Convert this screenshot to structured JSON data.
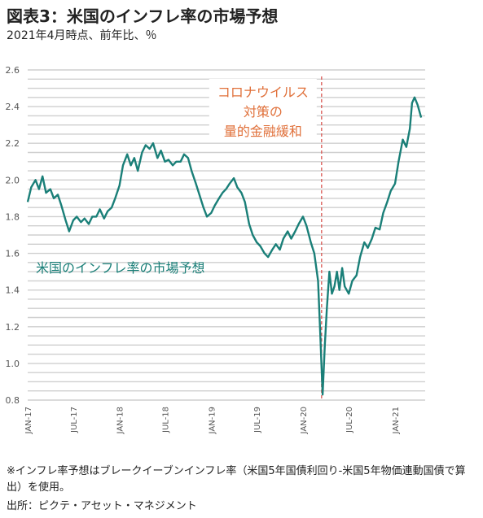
{
  "header": {
    "title": "図表3：米国のインフレ率の市場予想",
    "subtitle": "2021年4月時点、前年比、％"
  },
  "footer": {
    "note": "※インフレ率予想はブレークイーブンインフレ率（米国5年国債利回り-米国5年物価連動国債で算出）を使用。",
    "source": "出所：ピクテ・アセット・マネジメント"
  },
  "colors": {
    "series": "#1a7f78",
    "annotation": "#e0703a",
    "event_line": "#d9534f",
    "grid": "#cfcfcf"
  },
  "chart_data": {
    "type": "line",
    "title": "",
    "xlabel": "",
    "ylabel": "",
    "ylim": [
      0.8,
      2.6
    ],
    "yticks": [
      "0.8",
      "1.0",
      "1.2",
      "1.4",
      "1.6",
      "1.8",
      "2.0",
      "2.2",
      "2.4",
      "2.6"
    ],
    "xlim": [
      "2017-01",
      "2021-05"
    ],
    "xticks": [
      {
        "label": "JAN-17",
        "date": "2017-01"
      },
      {
        "label": "JUL-17",
        "date": "2017-07"
      },
      {
        "label": "JAN-18",
        "date": "2018-01"
      },
      {
        "label": "JUL-18",
        "date": "2018-07"
      },
      {
        "label": "JAN-19",
        "date": "2019-01"
      },
      {
        "label": "JUL-19",
        "date": "2019-07"
      },
      {
        "label": "JAN-20",
        "date": "2020-01"
      },
      {
        "label": "JUL-20",
        "date": "2020-07"
      },
      {
        "label": "JAN-21",
        "date": "2021-01"
      }
    ],
    "grid": true,
    "series": [
      {
        "name": "米国のインフレ率の市場予想",
        "points": [
          [
            "2017-01-01",
            1.88
          ],
          [
            "2017-01-15",
            1.96
          ],
          [
            "2017-02-01",
            2.0
          ],
          [
            "2017-02-15",
            1.95
          ],
          [
            "2017-03-01",
            2.02
          ],
          [
            "2017-03-15",
            1.93
          ],
          [
            "2017-04-01",
            1.95
          ],
          [
            "2017-04-15",
            1.9
          ],
          [
            "2017-05-01",
            1.92
          ],
          [
            "2017-05-15",
            1.86
          ],
          [
            "2017-06-01",
            1.78
          ],
          [
            "2017-06-15",
            1.72
          ],
          [
            "2017-07-01",
            1.78
          ],
          [
            "2017-07-15",
            1.8
          ],
          [
            "2017-08-01",
            1.77
          ],
          [
            "2017-08-15",
            1.79
          ],
          [
            "2017-09-01",
            1.76
          ],
          [
            "2017-09-15",
            1.8
          ],
          [
            "2017-10-01",
            1.8
          ],
          [
            "2017-10-15",
            1.84
          ],
          [
            "2017-11-01",
            1.79
          ],
          [
            "2017-11-15",
            1.83
          ],
          [
            "2017-12-01",
            1.85
          ],
          [
            "2017-12-15",
            1.9
          ],
          [
            "2018-01-01",
            1.97
          ],
          [
            "2018-01-15",
            2.08
          ],
          [
            "2018-02-01",
            2.14
          ],
          [
            "2018-02-15",
            2.08
          ],
          [
            "2018-03-01",
            2.12
          ],
          [
            "2018-03-15",
            2.05
          ],
          [
            "2018-04-01",
            2.15
          ],
          [
            "2018-04-15",
            2.19
          ],
          [
            "2018-05-01",
            2.17
          ],
          [
            "2018-05-15",
            2.2
          ],
          [
            "2018-06-01",
            2.12
          ],
          [
            "2018-06-15",
            2.16
          ],
          [
            "2018-07-01",
            2.1
          ],
          [
            "2018-07-15",
            2.11
          ],
          [
            "2018-08-01",
            2.08
          ],
          [
            "2018-08-15",
            2.1
          ],
          [
            "2018-09-01",
            2.1
          ],
          [
            "2018-09-15",
            2.14
          ],
          [
            "2018-10-01",
            2.12
          ],
          [
            "2018-10-15",
            2.05
          ],
          [
            "2018-11-01",
            1.98
          ],
          [
            "2018-11-15",
            1.92
          ],
          [
            "2018-12-01",
            1.85
          ],
          [
            "2018-12-15",
            1.8
          ],
          [
            "2019-01-01",
            1.82
          ],
          [
            "2019-01-15",
            1.86
          ],
          [
            "2019-02-01",
            1.9
          ],
          [
            "2019-02-15",
            1.93
          ],
          [
            "2019-03-01",
            1.95
          ],
          [
            "2019-03-15",
            1.98
          ],
          [
            "2019-04-01",
            2.01
          ],
          [
            "2019-04-15",
            1.96
          ],
          [
            "2019-05-01",
            1.93
          ],
          [
            "2019-05-15",
            1.88
          ],
          [
            "2019-06-01",
            1.76
          ],
          [
            "2019-06-15",
            1.7
          ],
          [
            "2019-07-01",
            1.66
          ],
          [
            "2019-07-15",
            1.64
          ],
          [
            "2019-08-01",
            1.6
          ],
          [
            "2019-08-15",
            1.58
          ],
          [
            "2019-09-01",
            1.62
          ],
          [
            "2019-09-15",
            1.65
          ],
          [
            "2019-10-01",
            1.62
          ],
          [
            "2019-10-15",
            1.68
          ],
          [
            "2019-11-01",
            1.72
          ],
          [
            "2019-11-15",
            1.68
          ],
          [
            "2019-12-01",
            1.72
          ],
          [
            "2019-12-15",
            1.76
          ],
          [
            "2020-01-01",
            1.8
          ],
          [
            "2020-01-15",
            1.75
          ],
          [
            "2020-02-01",
            1.66
          ],
          [
            "2020-02-15",
            1.6
          ],
          [
            "2020-03-01",
            1.45
          ],
          [
            "2020-03-10",
            1.15
          ],
          [
            "2020-03-19",
            0.83
          ],
          [
            "2020-03-28",
            1.1
          ],
          [
            "2020-04-05",
            1.3
          ],
          [
            "2020-04-15",
            1.5
          ],
          [
            "2020-04-25",
            1.38
          ],
          [
            "2020-05-05",
            1.42
          ],
          [
            "2020-05-15",
            1.5
          ],
          [
            "2020-05-25",
            1.4
          ],
          [
            "2020-06-05",
            1.52
          ],
          [
            "2020-06-15",
            1.42
          ],
          [
            "2020-07-01",
            1.38
          ],
          [
            "2020-07-15",
            1.45
          ],
          [
            "2020-08-01",
            1.48
          ],
          [
            "2020-08-15",
            1.58
          ],
          [
            "2020-09-01",
            1.66
          ],
          [
            "2020-09-15",
            1.63
          ],
          [
            "2020-10-01",
            1.68
          ],
          [
            "2020-10-15",
            1.74
          ],
          [
            "2020-11-01",
            1.73
          ],
          [
            "2020-11-15",
            1.82
          ],
          [
            "2020-12-01",
            1.88
          ],
          [
            "2020-12-15",
            1.94
          ],
          [
            "2021-01-01",
            1.98
          ],
          [
            "2021-01-15",
            2.1
          ],
          [
            "2021-02-01",
            2.22
          ],
          [
            "2021-02-15",
            2.18
          ],
          [
            "2021-03-01",
            2.28
          ],
          [
            "2021-03-10",
            2.42
          ],
          [
            "2021-03-20",
            2.45
          ],
          [
            "2021-04-01",
            2.41
          ],
          [
            "2021-04-15",
            2.34
          ]
        ]
      }
    ],
    "series_label": "米国のインフレ率の市場予想",
    "annotations": [
      {
        "date": "2020-03-15",
        "lines": [
          "コロナウイルス",
          "対策の",
          "量的金融緩和"
        ]
      }
    ]
  }
}
